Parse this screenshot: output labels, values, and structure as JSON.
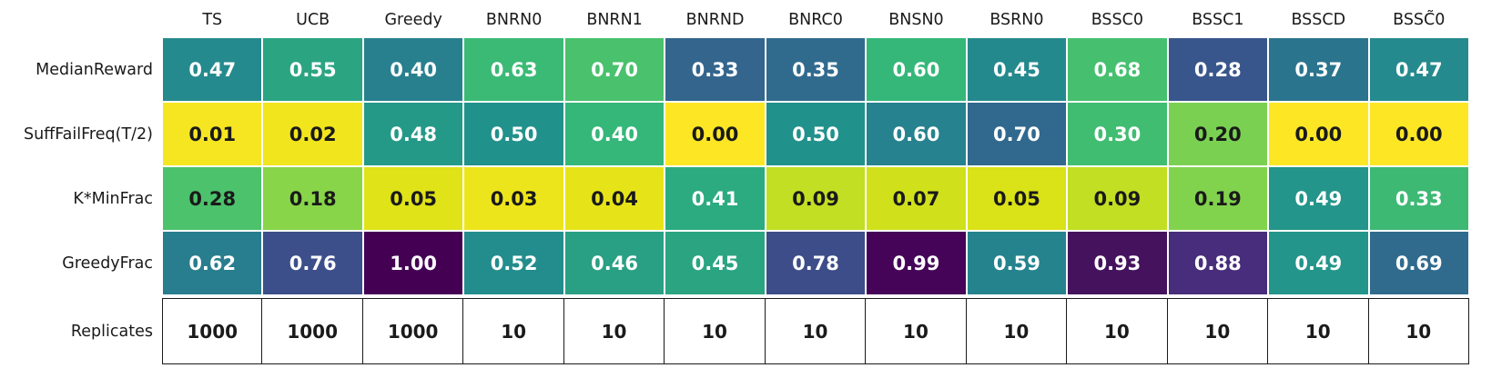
{
  "figure": {
    "background": "#ffffff",
    "colormap": "viridis",
    "text_dark": "#1a1a1a",
    "text_light": "#ffffff"
  },
  "chart_data": {
    "type": "heatmap",
    "title": "",
    "columns": [
      "TS",
      "UCB",
      "Greedy",
      "BNRN0",
      "BNRN1",
      "BNRND",
      "BNRC0",
      "BNSN0",
      "BSRN0",
      "BSSC0",
      "BSSC1",
      "BSSCD",
      "BSSC̃0"
    ],
    "rows": [
      {
        "label": "MedianReward",
        "style": "heatmap",
        "values": [
          0.47,
          0.55,
          0.4,
          0.63,
          0.7,
          0.33,
          0.35,
          0.6,
          0.45,
          0.68,
          0.28,
          0.37,
          0.47
        ],
        "display": [
          "0.47",
          "0.55",
          "0.40",
          "0.63",
          "0.70",
          "0.33",
          "0.35",
          "0.60",
          "0.45",
          "0.68",
          "0.28",
          "0.37",
          "0.47"
        ],
        "cell_colors": [
          "#258a8d",
          "#2ba482",
          "#28808e",
          "#3bba75",
          "#4ac16d",
          "#33658d",
          "#306b8e",
          "#35b779",
          "#24898d",
          "#46c06f",
          "#39568c",
          "#2b748e",
          "#258a8d"
        ],
        "text_colors": [
          "light",
          "light",
          "light",
          "light",
          "light",
          "light",
          "light",
          "light",
          "light",
          "light",
          "light",
          "light",
          "light"
        ]
      },
      {
        "label": "SuffFailFreq(T/2)",
        "style": "heatmap",
        "values": [
          0.01,
          0.02,
          0.48,
          0.5,
          0.4,
          0.0,
          0.5,
          0.6,
          0.7,
          0.3,
          0.2,
          0.0,
          0.0
        ],
        "display": [
          "0.01",
          "0.02",
          "0.48",
          "0.50",
          "0.40",
          "0.00",
          "0.50",
          "0.60",
          "0.70",
          "0.30",
          "0.20",
          "0.00",
          "0.00"
        ],
        "cell_colors": [
          "#f6e621",
          "#f1e51d",
          "#259988",
          "#21918c",
          "#35b779",
          "#fde725",
          "#21918c",
          "#26828e",
          "#31688e",
          "#41bd72",
          "#7ad151",
          "#fde725",
          "#fde725"
        ],
        "text_colors": [
          "dark",
          "dark",
          "light",
          "light",
          "light",
          "dark",
          "light",
          "light",
          "light",
          "light",
          "dark",
          "dark",
          "dark"
        ]
      },
      {
        "label": "K*MinFrac",
        "style": "heatmap",
        "values": [
          0.28,
          0.18,
          0.05,
          0.03,
          0.04,
          0.41,
          0.09,
          0.07,
          0.05,
          0.09,
          0.19,
          0.49,
          0.33
        ],
        "display": [
          "0.28",
          "0.18",
          "0.05",
          "0.03",
          "0.04",
          "0.41",
          "0.09",
          "0.07",
          "0.05",
          "0.09",
          "0.19",
          "0.49",
          "0.33"
        ],
        "cell_colors": [
          "#4cc26c",
          "#88d549",
          "#dfe318",
          "#ede51b",
          "#e6e419",
          "#2cab80",
          "#c2df23",
          "#d0e11c",
          "#dae218",
          "#c2df23",
          "#81d34d",
          "#23958a",
          "#3db974"
        ],
        "text_colors": [
          "dark",
          "dark",
          "dark",
          "dark",
          "dark",
          "light",
          "dark",
          "dark",
          "dark",
          "dark",
          "dark",
          "light",
          "light"
        ]
      },
      {
        "label": "GreedyFrac",
        "style": "heatmap",
        "values": [
          0.62,
          0.76,
          1.0,
          0.52,
          0.46,
          0.45,
          0.78,
          0.99,
          0.59,
          0.93,
          0.88,
          0.49,
          0.69
        ],
        "display": [
          "0.62",
          "0.76",
          "1.00",
          "0.52",
          "0.46",
          "0.45",
          "0.78",
          "0.99",
          "0.59",
          "0.93",
          "0.88",
          "0.49",
          "0.69"
        ],
        "cell_colors": [
          "#287d8e",
          "#3c4f8a",
          "#440154",
          "#238d8d",
          "#29a084",
          "#2ba482",
          "#3d4d8a",
          "#450457",
          "#25838e",
          "#45135e",
          "#472d7b",
          "#23958a",
          "#306b8e"
        ],
        "text_colors": [
          "light",
          "light",
          "light",
          "light",
          "light",
          "light",
          "light",
          "light",
          "light",
          "light",
          "light",
          "light",
          "light"
        ]
      },
      {
        "label": "Replicates",
        "style": "plain",
        "values": [
          1000,
          1000,
          1000,
          10,
          10,
          10,
          10,
          10,
          10,
          10,
          10,
          10,
          10
        ],
        "display": [
          "1000",
          "1000",
          "1000",
          "10",
          "10",
          "10",
          "10",
          "10",
          "10",
          "10",
          "10",
          "10",
          "10"
        ],
        "cell_colors": null,
        "text_colors": [
          "dark",
          "dark",
          "dark",
          "dark",
          "dark",
          "dark",
          "dark",
          "dark",
          "dark",
          "dark",
          "dark",
          "dark",
          "dark"
        ]
      }
    ]
  }
}
